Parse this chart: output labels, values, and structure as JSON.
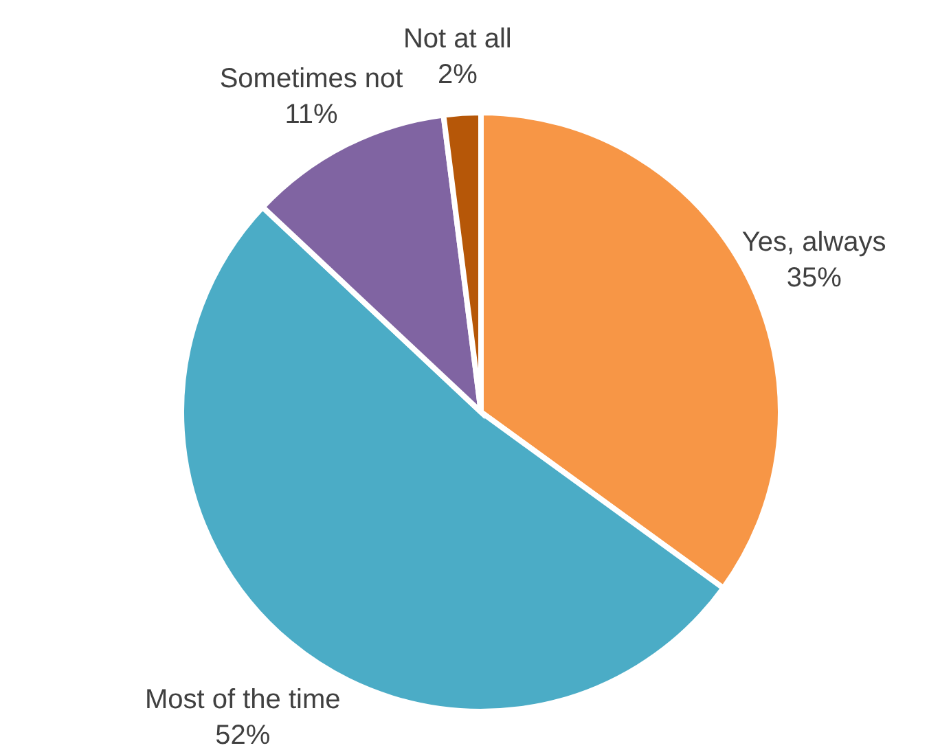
{
  "chart_data": {
    "type": "pie",
    "categories": [
      "Yes, always",
      "Most of the time",
      "Sometimes not",
      "Not at all"
    ],
    "values": [
      35,
      52,
      11,
      2
    ],
    "colors": [
      "#f79646",
      "#4bacc6",
      "#8064a2",
      "#b65708"
    ],
    "value_labels": [
      "35%",
      "52%",
      "11%",
      "2%"
    ]
  }
}
